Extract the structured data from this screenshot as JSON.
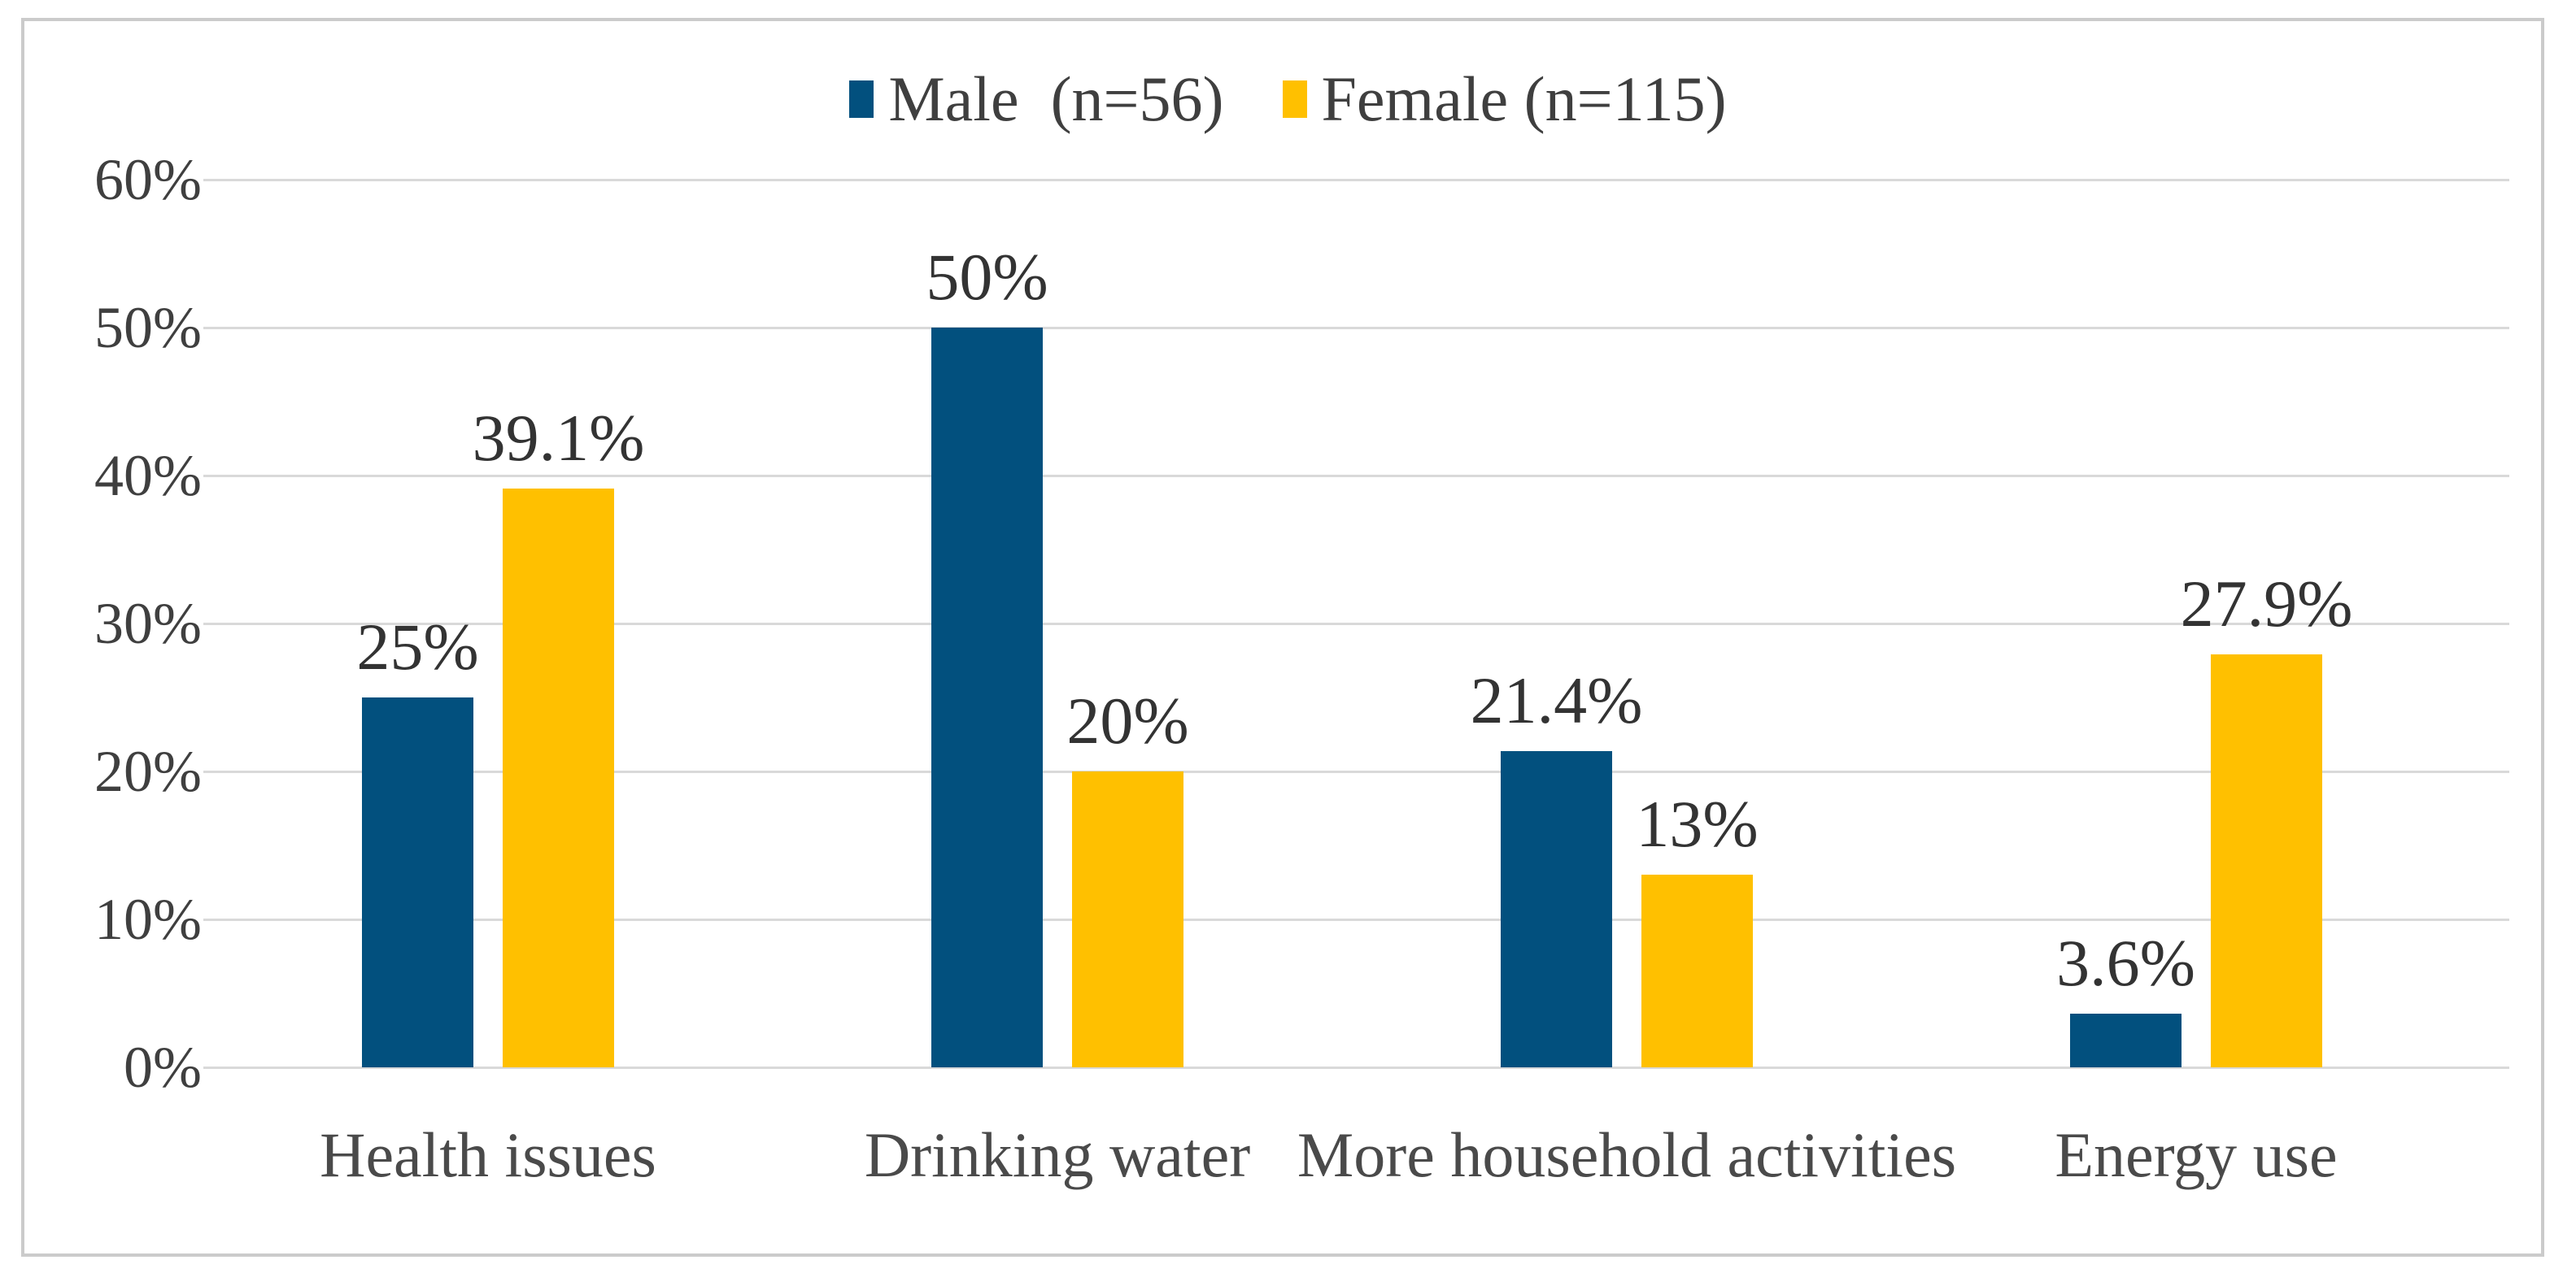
{
  "chart_data": {
    "type": "bar",
    "title": "",
    "categories": [
      "Health issues",
      "Drinking water",
      "More household activities",
      "Energy use"
    ],
    "series": [
      {
        "name": "Male  (n=56)",
        "color": "#02507E",
        "values": [
          25,
          50,
          21.4,
          3.6
        ],
        "labels": [
          "25%",
          "50%",
          "21.4%",
          "3.6%"
        ]
      },
      {
        "name": "Female (n=115)",
        "color": "#FFC000",
        "values": [
          39.1,
          20,
          13,
          27.9
        ],
        "labels": [
          "39.1%",
          "20%",
          "13%",
          "27.9%"
        ]
      }
    ],
    "y_axis": {
      "ticks": [
        "0%",
        "10%",
        "20%",
        "30%",
        "40%",
        "50%",
        "60%"
      ],
      "tick_values": [
        0,
        10,
        20,
        30,
        40,
        50,
        60
      ],
      "min": 0,
      "max": 60,
      "grid": true,
      "gridline_color": "#D9D9D9"
    },
    "legend_position": "top",
    "text_color": "#3F3F3F",
    "frame_border_color": "#CBCBCB",
    "background": "#FFFFFF"
  }
}
